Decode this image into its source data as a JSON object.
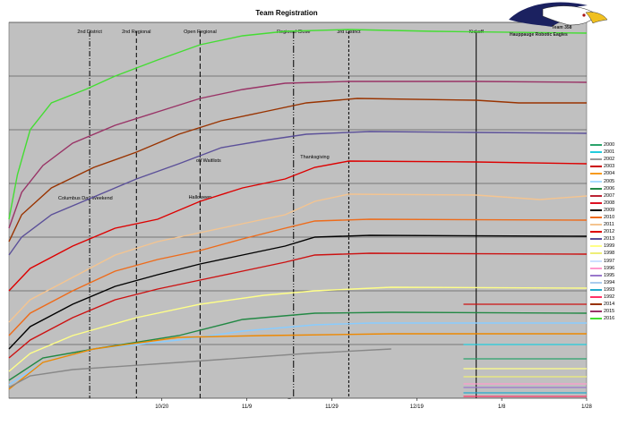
{
  "title": "Team Registration",
  "logo": {
    "line1": "Team 358",
    "line2": "Hauppauge Robotic Eagles"
  },
  "chart_data": {
    "type": "line",
    "title": "Team Registration",
    "x_tick_labels": [
      "10/20",
      "11/9",
      "11/29",
      "12/19",
      "1/8",
      "1/28"
    ],
    "x_ticks": [
      36,
      56,
      76,
      96,
      116,
      136
    ],
    "xlim": [
      0,
      136
    ],
    "ylim": [
      0,
      420
    ],
    "grid": "horizontal",
    "event_markers": [
      {
        "label": "2nd District",
        "x": 19
      },
      {
        "label": "2nd Regional",
        "x": 30
      },
      {
        "label": "Open Regional",
        "x": 45
      },
      {
        "label": "Regional Close",
        "x": 67
      },
      {
        "label": "3rd District",
        "x": 80
      },
      {
        "label": "Kickoff",
        "x": 110
      }
    ],
    "annotations": [
      "Columbus Day Weekend",
      "Halloween",
      "off Waitlists",
      "Thanksgiving",
      "_"
    ],
    "series": [
      {
        "name": "2016",
        "color": "#44dd33",
        "points": [
          [
            0,
            200
          ],
          [
            2,
            250
          ],
          [
            5,
            300
          ],
          [
            10,
            330
          ],
          [
            18,
            345
          ],
          [
            25,
            360
          ],
          [
            35,
            378
          ],
          [
            45,
            395
          ],
          [
            55,
            405
          ],
          [
            65,
            410
          ],
          [
            80,
            412
          ],
          [
            100,
            410
          ],
          [
            136,
            408
          ]
        ]
      },
      {
        "name": "2015",
        "color": "#993366",
        "points": [
          [
            0,
            190
          ],
          [
            3,
            230
          ],
          [
            8,
            260
          ],
          [
            15,
            285
          ],
          [
            25,
            305
          ],
          [
            35,
            320
          ],
          [
            45,
            335
          ],
          [
            55,
            345
          ],
          [
            65,
            352
          ],
          [
            80,
            354
          ],
          [
            110,
            354
          ],
          [
            136,
            353
          ]
        ]
      },
      {
        "name": "2014",
        "color": "#993300",
        "points": [
          [
            0,
            175
          ],
          [
            3,
            205
          ],
          [
            10,
            235
          ],
          [
            20,
            258
          ],
          [
            30,
            275
          ],
          [
            40,
            295
          ],
          [
            50,
            310
          ],
          [
            60,
            320
          ],
          [
            70,
            330
          ],
          [
            82,
            335
          ],
          [
            110,
            333
          ],
          [
            120,
            330
          ],
          [
            136,
            330
          ]
        ]
      },
      {
        "name": "2013",
        "color": "#5b5099",
        "points": [
          [
            0,
            160
          ],
          [
            3,
            180
          ],
          [
            10,
            205
          ],
          [
            20,
            225
          ],
          [
            30,
            245
          ],
          [
            40,
            262
          ],
          [
            50,
            280
          ],
          [
            60,
            288
          ],
          [
            70,
            295
          ],
          [
            85,
            298
          ],
          [
            110,
            297
          ],
          [
            136,
            296
          ]
        ]
      },
      {
        "name": "2012",
        "color": "#dd0000",
        "points": [
          [
            0,
            120
          ],
          [
            5,
            145
          ],
          [
            15,
            170
          ],
          [
            25,
            190
          ],
          [
            35,
            200
          ],
          [
            45,
            220
          ],
          [
            55,
            235
          ],
          [
            65,
            245
          ],
          [
            72,
            258
          ],
          [
            80,
            265
          ],
          [
            110,
            264
          ],
          [
            136,
            262
          ]
        ]
      },
      {
        "name": "2011",
        "color": "#f4c490",
        "points": [
          [
            0,
            85
          ],
          [
            5,
            110
          ],
          [
            15,
            135
          ],
          [
            25,
            160
          ],
          [
            35,
            175
          ],
          [
            45,
            185
          ],
          [
            55,
            195
          ],
          [
            65,
            205
          ],
          [
            72,
            220
          ],
          [
            80,
            228
          ],
          [
            110,
            227
          ],
          [
            125,
            222
          ],
          [
            136,
            226
          ]
        ]
      },
      {
        "name": "2010",
        "color": "#ee6b1a",
        "points": [
          [
            0,
            70
          ],
          [
            5,
            95
          ],
          [
            15,
            120
          ],
          [
            25,
            142
          ],
          [
            35,
            155
          ],
          [
            45,
            165
          ],
          [
            55,
            178
          ],
          [
            65,
            190
          ],
          [
            72,
            198
          ],
          [
            85,
            200
          ],
          [
            136,
            199
          ]
        ]
      },
      {
        "name": "2009",
        "color": "#000000",
        "points": [
          [
            0,
            55
          ],
          [
            5,
            80
          ],
          [
            15,
            105
          ],
          [
            25,
            125
          ],
          [
            35,
            138
          ],
          [
            45,
            150
          ],
          [
            55,
            160
          ],
          [
            65,
            170
          ],
          [
            72,
            180
          ],
          [
            85,
            182
          ],
          [
            136,
            181
          ]
        ]
      },
      {
        "name": "2008",
        "color": "#cc1111",
        "points": [
          [
            0,
            45
          ],
          [
            5,
            65
          ],
          [
            15,
            90
          ],
          [
            25,
            110
          ],
          [
            35,
            122
          ],
          [
            45,
            132
          ],
          [
            55,
            142
          ],
          [
            65,
            152
          ],
          [
            72,
            160
          ],
          [
            85,
            162
          ],
          [
            136,
            161
          ]
        ]
      },
      {
        "name": "1999",
        "color": "#ffff88",
        "points": [
          [
            0,
            30
          ],
          [
            5,
            50
          ],
          [
            15,
            70
          ],
          [
            30,
            90
          ],
          [
            45,
            105
          ],
          [
            60,
            115
          ],
          [
            72,
            120
          ],
          [
            90,
            124
          ],
          [
            136,
            123
          ]
        ]
      },
      {
        "name": "2006",
        "color": "#228844",
        "points": [
          [
            0,
            20
          ],
          [
            8,
            45
          ],
          [
            20,
            55
          ],
          [
            40,
            70
          ],
          [
            55,
            88
          ],
          [
            72,
            95
          ],
          [
            90,
            96
          ],
          [
            136,
            95
          ]
        ]
      },
      {
        "name": "1997",
        "color": "#88ccff",
        "points": [
          [
            0,
            15
          ],
          [
            8,
            40
          ],
          [
            20,
            55
          ],
          [
            40,
            65
          ],
          [
            55,
            75
          ],
          [
            72,
            82
          ],
          [
            85,
            84
          ],
          [
            136,
            84
          ]
        ]
      },
      {
        "name": "2004",
        "color": "#ee8800",
        "points": [
          [
            0,
            10
          ],
          [
            8,
            40
          ],
          [
            20,
            55
          ],
          [
            40,
            68
          ],
          [
            60,
            70
          ],
          [
            90,
            72
          ],
          [
            136,
            72
          ]
        ]
      },
      {
        "name": "2002",
        "color": "#888888",
        "points": [
          [
            0,
            12
          ],
          [
            5,
            25
          ],
          [
            15,
            32
          ],
          [
            40,
            40
          ],
          [
            70,
            50
          ],
          [
            90,
            55
          ]
        ]
      }
    ],
    "late_stubs": [
      {
        "name": "2012",
        "color": "#cc1111",
        "y": 105
      },
      {
        "name": "2001",
        "color": "#22ccdd",
        "y": 60
      },
      {
        "name": "2000",
        "color": "#2ba36b",
        "y": 44
      },
      {
        "name": "1999",
        "color": "#ffff88",
        "y": 33
      },
      {
        "name": "1998",
        "color": "#eeee77",
        "y": 24
      },
      {
        "name": "1996",
        "color": "#ff99cc",
        "y": 16
      },
      {
        "name": "1995",
        "color": "#9977cc",
        "y": 12
      },
      {
        "name": "1993",
        "color": "#22aacc",
        "y": 6
      },
      {
        "name": "1992",
        "color": "#ff3366",
        "y": 2
      }
    ],
    "legend": [
      "2000",
      "2001",
      "2002",
      "2003",
      "2004",
      "2005",
      "2006",
      "2007",
      "2008",
      "2009",
      "2010",
      "2011",
      "2012",
      "2013",
      "1999",
      "1998",
      "1997",
      "1996",
      "1995",
      "1994",
      "1993",
      "1992",
      "2014",
      "2015",
      "2016"
    ],
    "legend_colors": [
      "#2ba36b",
      "#22ccdd",
      "#999999",
      "#cc0000",
      "#f79a1e",
      "#aaddff",
      "#228844",
      "#bb2233",
      "#dd1122",
      "#000000",
      "#ee6b1a",
      "#f4c490",
      "#dd0000",
      "#5b5099",
      "#ffff88",
      "#eeee77",
      "#cce0ff",
      "#ff99cc",
      "#9977cc",
      "#aaccee",
      "#22aacc",
      "#ff3366",
      "#993300",
      "#993366",
      "#44dd33"
    ],
    "legend_position": "right"
  }
}
